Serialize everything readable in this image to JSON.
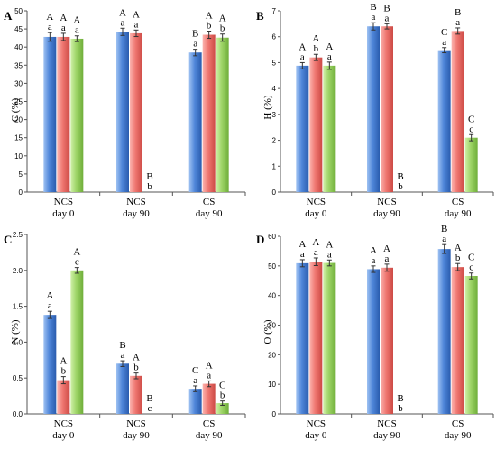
{
  "colors": {
    "blue": "#4f86d9",
    "red": "#ef7670",
    "green": "#9dd466"
  },
  "chart_data": [
    {
      "type": "bar",
      "panel": "A",
      "ylabel": "C (%)",
      "ylim": [
        0,
        50
      ],
      "yticks": [
        0,
        5,
        10,
        15,
        20,
        25,
        30,
        35,
        40,
        45,
        50
      ],
      "categories": [
        [
          "NCS",
          "day 0"
        ],
        [
          "NCS",
          "day 90"
        ],
        [
          "CS",
          "day 90"
        ]
      ],
      "series": [
        {
          "color": "blue",
          "values": [
            42.8,
            44.2,
            38.5
          ],
          "errors": [
            1.2,
            1.0,
            0.9
          ],
          "sig": [
            [
              "A",
              "a"
            ],
            [
              "A",
              "a"
            ],
            [
              "B",
              "a"
            ]
          ]
        },
        {
          "color": "red",
          "values": [
            42.8,
            43.8,
            43.4
          ],
          "errors": [
            1.0,
            0.9,
            1.0
          ],
          "sig": [
            [
              "A",
              "a"
            ],
            [
              "A",
              "a"
            ],
            [
              "A",
              "b"
            ]
          ]
        },
        {
          "color": "green",
          "values": [
            42.3,
            0.0,
            42.6
          ],
          "errors": [
            0.8,
            0,
            1.0
          ],
          "sig": [
            [
              "A",
              "a"
            ],
            [
              "B",
              "b"
            ],
            [
              "A",
              "b"
            ]
          ]
        }
      ]
    },
    {
      "type": "bar",
      "panel": "B",
      "ylabel": "H (%)",
      "ylim": [
        0,
        7
      ],
      "yticks": [
        0,
        1,
        2,
        3,
        4,
        5,
        6,
        7
      ],
      "categories": [
        [
          "NCS",
          "day 0"
        ],
        [
          "NCS",
          "day 90"
        ],
        [
          "CS",
          "day 90"
        ]
      ],
      "series": [
        {
          "color": "blue",
          "values": [
            4.88,
            6.4,
            5.48
          ],
          "errors": [
            0.12,
            0.14,
            0.1
          ],
          "sig": [
            [
              "A",
              "a"
            ],
            [
              "B",
              "a"
            ],
            [
              "C",
              "a"
            ]
          ]
        },
        {
          "color": "red",
          "values": [
            5.2,
            6.4,
            6.22
          ],
          "errors": [
            0.12,
            0.1,
            0.12
          ],
          "sig": [
            [
              "A",
              "b"
            ],
            [
              "B",
              "a"
            ],
            [
              "B",
              "a"
            ]
          ]
        },
        {
          "color": "green",
          "values": [
            4.88,
            0.0,
            2.1
          ],
          "errors": [
            0.14,
            0,
            0.12
          ],
          "sig": [
            [
              "A",
              "a"
            ],
            [
              "B",
              "b"
            ],
            [
              "C",
              "c"
            ]
          ]
        }
      ]
    },
    {
      "type": "bar",
      "panel": "C",
      "ylabel": "N (%)",
      "ylim": [
        0,
        2.5
      ],
      "yticks": [
        0.0,
        0.5,
        1.0,
        1.5,
        2.0,
        2.5
      ],
      "categories": [
        [
          "NCS",
          "day 0"
        ],
        [
          "NCS",
          "day 90"
        ],
        [
          "CS",
          "day 90"
        ]
      ],
      "series": [
        {
          "color": "blue",
          "values": [
            1.38,
            0.7,
            0.35
          ],
          "errors": [
            0.05,
            0.04,
            0.04
          ],
          "sig": [
            [
              "A",
              "a"
            ],
            [
              "B",
              "a"
            ],
            [
              "C",
              "a"
            ]
          ]
        },
        {
          "color": "red",
          "values": [
            0.47,
            0.53,
            0.42
          ],
          "errors": [
            0.05,
            0.04,
            0.04
          ],
          "sig": [
            [
              "A",
              "b"
            ],
            [
              "A",
              "b"
            ],
            [
              "A",
              "a"
            ]
          ]
        },
        {
          "color": "green",
          "values": [
            2.0,
            0.0,
            0.15
          ],
          "errors": [
            0.04,
            0,
            0.03
          ],
          "sig": [
            [
              "A",
              "c"
            ],
            [
              "B",
              "c"
            ],
            [
              "C",
              "b"
            ]
          ]
        }
      ]
    },
    {
      "type": "bar",
      "panel": "D",
      "ylabel": "O (%)",
      "ylim": [
        0,
        60
      ],
      "yticks": [
        0,
        10,
        20,
        30,
        40,
        50,
        60
      ],
      "categories": [
        [
          "NCS",
          "day 0"
        ],
        [
          "NCS",
          "day 90"
        ],
        [
          "CS",
          "day 90"
        ]
      ],
      "series": [
        {
          "color": "blue",
          "values": [
            50.9,
            48.9,
            55.7
          ],
          "errors": [
            1.2,
            1.1,
            1.5
          ],
          "sig": [
            [
              "A",
              "a"
            ],
            [
              "A",
              "a"
            ],
            [
              "B",
              "a"
            ]
          ]
        },
        {
          "color": "red",
          "values": [
            51.4,
            49.4,
            49.6
          ],
          "errors": [
            1.3,
            1.2,
            1.2
          ],
          "sig": [
            [
              "A",
              "a"
            ],
            [
              "A",
              "a"
            ],
            [
              "A",
              "b"
            ]
          ]
        },
        {
          "color": "green",
          "values": [
            51.0,
            0.0,
            46.6
          ],
          "errors": [
            1.0,
            0,
            1.0
          ],
          "sig": [
            [
              "A",
              "a"
            ],
            [
              "B",
              "b"
            ],
            [
              "C",
              "c"
            ]
          ]
        }
      ]
    }
  ]
}
